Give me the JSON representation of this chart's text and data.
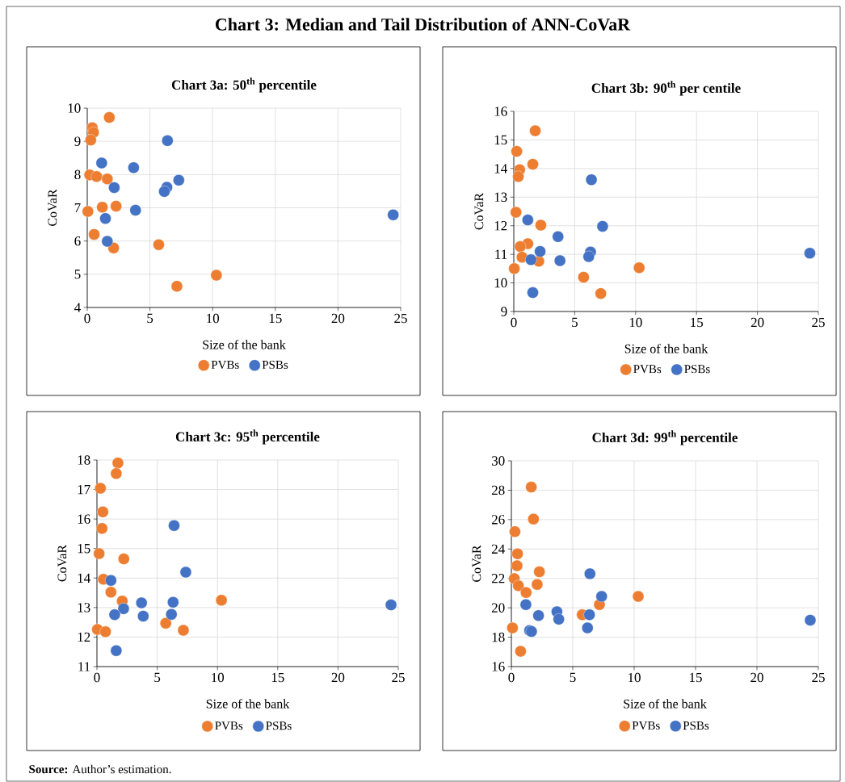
{
  "chart_data": [
    {
      "type": "other",
      "title": "Chart 3: Median and Tail Distribution of ANN-CoVaR",
      "annotations": [
        "**Source:** Author’s estimation."
      ]
    },
    {
      "type": "scatter",
      "title": "Chart 3a: 50$^{th}$ percentile",
      "xlabel": "Size of the bank",
      "ylabel": "CoVaR",
      "xlim": [
        0,
        25
      ],
      "ylim": [
        4,
        10
      ],
      "xticks": [
        0,
        5,
        10,
        15,
        20,
        25
      ],
      "yticks": [
        4,
        5,
        6,
        7,
        8,
        9,
        10
      ],
      "grid": true,
      "legend": "bottom",
      "marker": "circle",
      "series": [
        {
          "name": "PVBs",
          "color": "#ed7d31",
          "x": [
            1.76,
            0.4,
            0.5,
            0.28,
            0.2,
            0.75,
            1.6,
            1.2,
            2.3,
            0.05,
            0.55,
            2.1,
            5.7,
            10.3,
            7.15
          ],
          "values": [
            9.72,
            9.41,
            9.27,
            9.04,
            7.99,
            7.94,
            7.87,
            7.02,
            7.05,
            6.89,
            6.2,
            5.79,
            5.89,
            4.97,
            4.64
          ]
        },
        {
          "name": "PSBs",
          "color": "#4472c4",
          "x": [
            6.4,
            1.15,
            3.7,
            7.3,
            6.35,
            6.15,
            2.15,
            3.85,
            1.45,
            1.6,
            24.4
          ],
          "values": [
            9.02,
            8.35,
            8.21,
            7.83,
            7.62,
            7.49,
            7.61,
            6.93,
            6.68,
            5.99,
            6.79
          ]
        }
      ]
    },
    {
      "type": "scatter",
      "title": "Chart 3b: 90$^{th}$ per centile",
      "xlabel": "Size of the bank",
      "ylabel": "CoVaR",
      "xlim": [
        0,
        25
      ],
      "ylim": [
        9,
        16
      ],
      "xticks": [
        0,
        5,
        10,
        15,
        20,
        25
      ],
      "yticks": [
        9,
        10,
        11,
        12,
        13,
        14,
        15,
        16
      ],
      "grid": true,
      "legend": "bottom",
      "marker": "circle",
      "series": [
        {
          "name": "PVBs",
          "color": "#ed7d31",
          "x": [
            1.76,
            0.24,
            1.56,
            0.48,
            0.37,
            0.18,
            2.22,
            1.15,
            0.53,
            0.68,
            2.05,
            0.04,
            5.73,
            10.29,
            7.14
          ],
          "values": [
            15.32,
            14.6,
            14.15,
            13.96,
            13.72,
            12.47,
            12.02,
            11.37,
            11.27,
            10.9,
            10.76,
            10.5,
            10.2,
            10.53,
            9.63
          ]
        },
        {
          "name": "PSBs",
          "color": "#4472c4",
          "x": [
            6.37,
            1.15,
            3.63,
            7.29,
            2.16,
            6.3,
            6.15,
            1.41,
            3.79,
            1.56,
            24.3
          ],
          "values": [
            13.61,
            12.2,
            11.62,
            11.98,
            11.1,
            11.08,
            10.92,
            10.81,
            10.78,
            9.66,
            11.04
          ]
        }
      ]
    },
    {
      "type": "scatter",
      "title": "Chart 3c: 95$^{th}$ percentile",
      "xlabel": "Size of the bank",
      "ylabel": "CoVaR",
      "xlim": [
        0,
        25
      ],
      "ylim": [
        11,
        18
      ],
      "xticks": [
        0,
        5,
        10,
        15,
        20,
        25
      ],
      "yticks": [
        11,
        12,
        13,
        14,
        15,
        16,
        17,
        18
      ],
      "grid": true,
      "legend": "bottom",
      "marker": "circle",
      "series": [
        {
          "name": "PVBs",
          "color": "#ed7d31",
          "x": [
            1.74,
            1.6,
            0.29,
            0.49,
            0.42,
            0.18,
            2.23,
            0.54,
            1.16,
            2.1,
            10.33,
            5.71,
            7.17,
            0.04,
            0.71
          ],
          "values": [
            17.9,
            17.54,
            17.04,
            16.24,
            15.68,
            14.83,
            14.65,
            13.96,
            13.52,
            13.22,
            13.25,
            12.47,
            12.23,
            12.26,
            12.18
          ]
        },
        {
          "name": "PSBs",
          "color": "#4472c4",
          "x": [
            6.4,
            7.37,
            1.16,
            3.7,
            6.32,
            2.21,
            1.47,
            6.18,
            3.84,
            1.6,
            24.4
          ],
          "values": [
            15.78,
            14.2,
            13.92,
            13.16,
            13.18,
            12.96,
            12.76,
            12.77,
            12.71,
            11.54,
            13.09
          ]
        }
      ]
    },
    {
      "type": "scatter",
      "title": "Chart 3d: 99$^{th}$ percentile",
      "xlabel": "Size of the bank",
      "ylabel": "CoVaR",
      "xlim": [
        0,
        25
      ],
      "ylim": [
        16,
        30
      ],
      "xticks": [
        0,
        5,
        10,
        15,
        20,
        25
      ],
      "yticks": [
        16,
        18,
        20,
        22,
        24,
        26,
        28,
        30
      ],
      "grid": true,
      "legend": "bottom",
      "marker": "circle",
      "series": [
        {
          "name": "PVBs",
          "color": "#ed7d31",
          "x": [
            1.62,
            1.8,
            0.29,
            0.5,
            0.46,
            2.28,
            0.24,
            0.57,
            2.1,
            1.2,
            7.17,
            10.33,
            5.77,
            0.09,
            0.75
          ],
          "values": [
            28.21,
            26.04,
            25.18,
            23.67,
            22.86,
            22.45,
            21.99,
            21.5,
            21.59,
            21.04,
            20.22,
            20.77,
            19.53,
            18.63,
            17.04
          ]
        },
        {
          "name": "PSBs",
          "color": "#4472c4",
          "x": [
            6.4,
            7.35,
            1.18,
            3.71,
            3.86,
            2.21,
            6.36,
            6.2,
            1.49,
            1.64,
            24.34
          ],
          "values": [
            22.32,
            20.78,
            20.22,
            19.73,
            19.22,
            19.47,
            19.53,
            18.63,
            18.45,
            18.39,
            19.16
          ]
        }
      ]
    }
  ]
}
